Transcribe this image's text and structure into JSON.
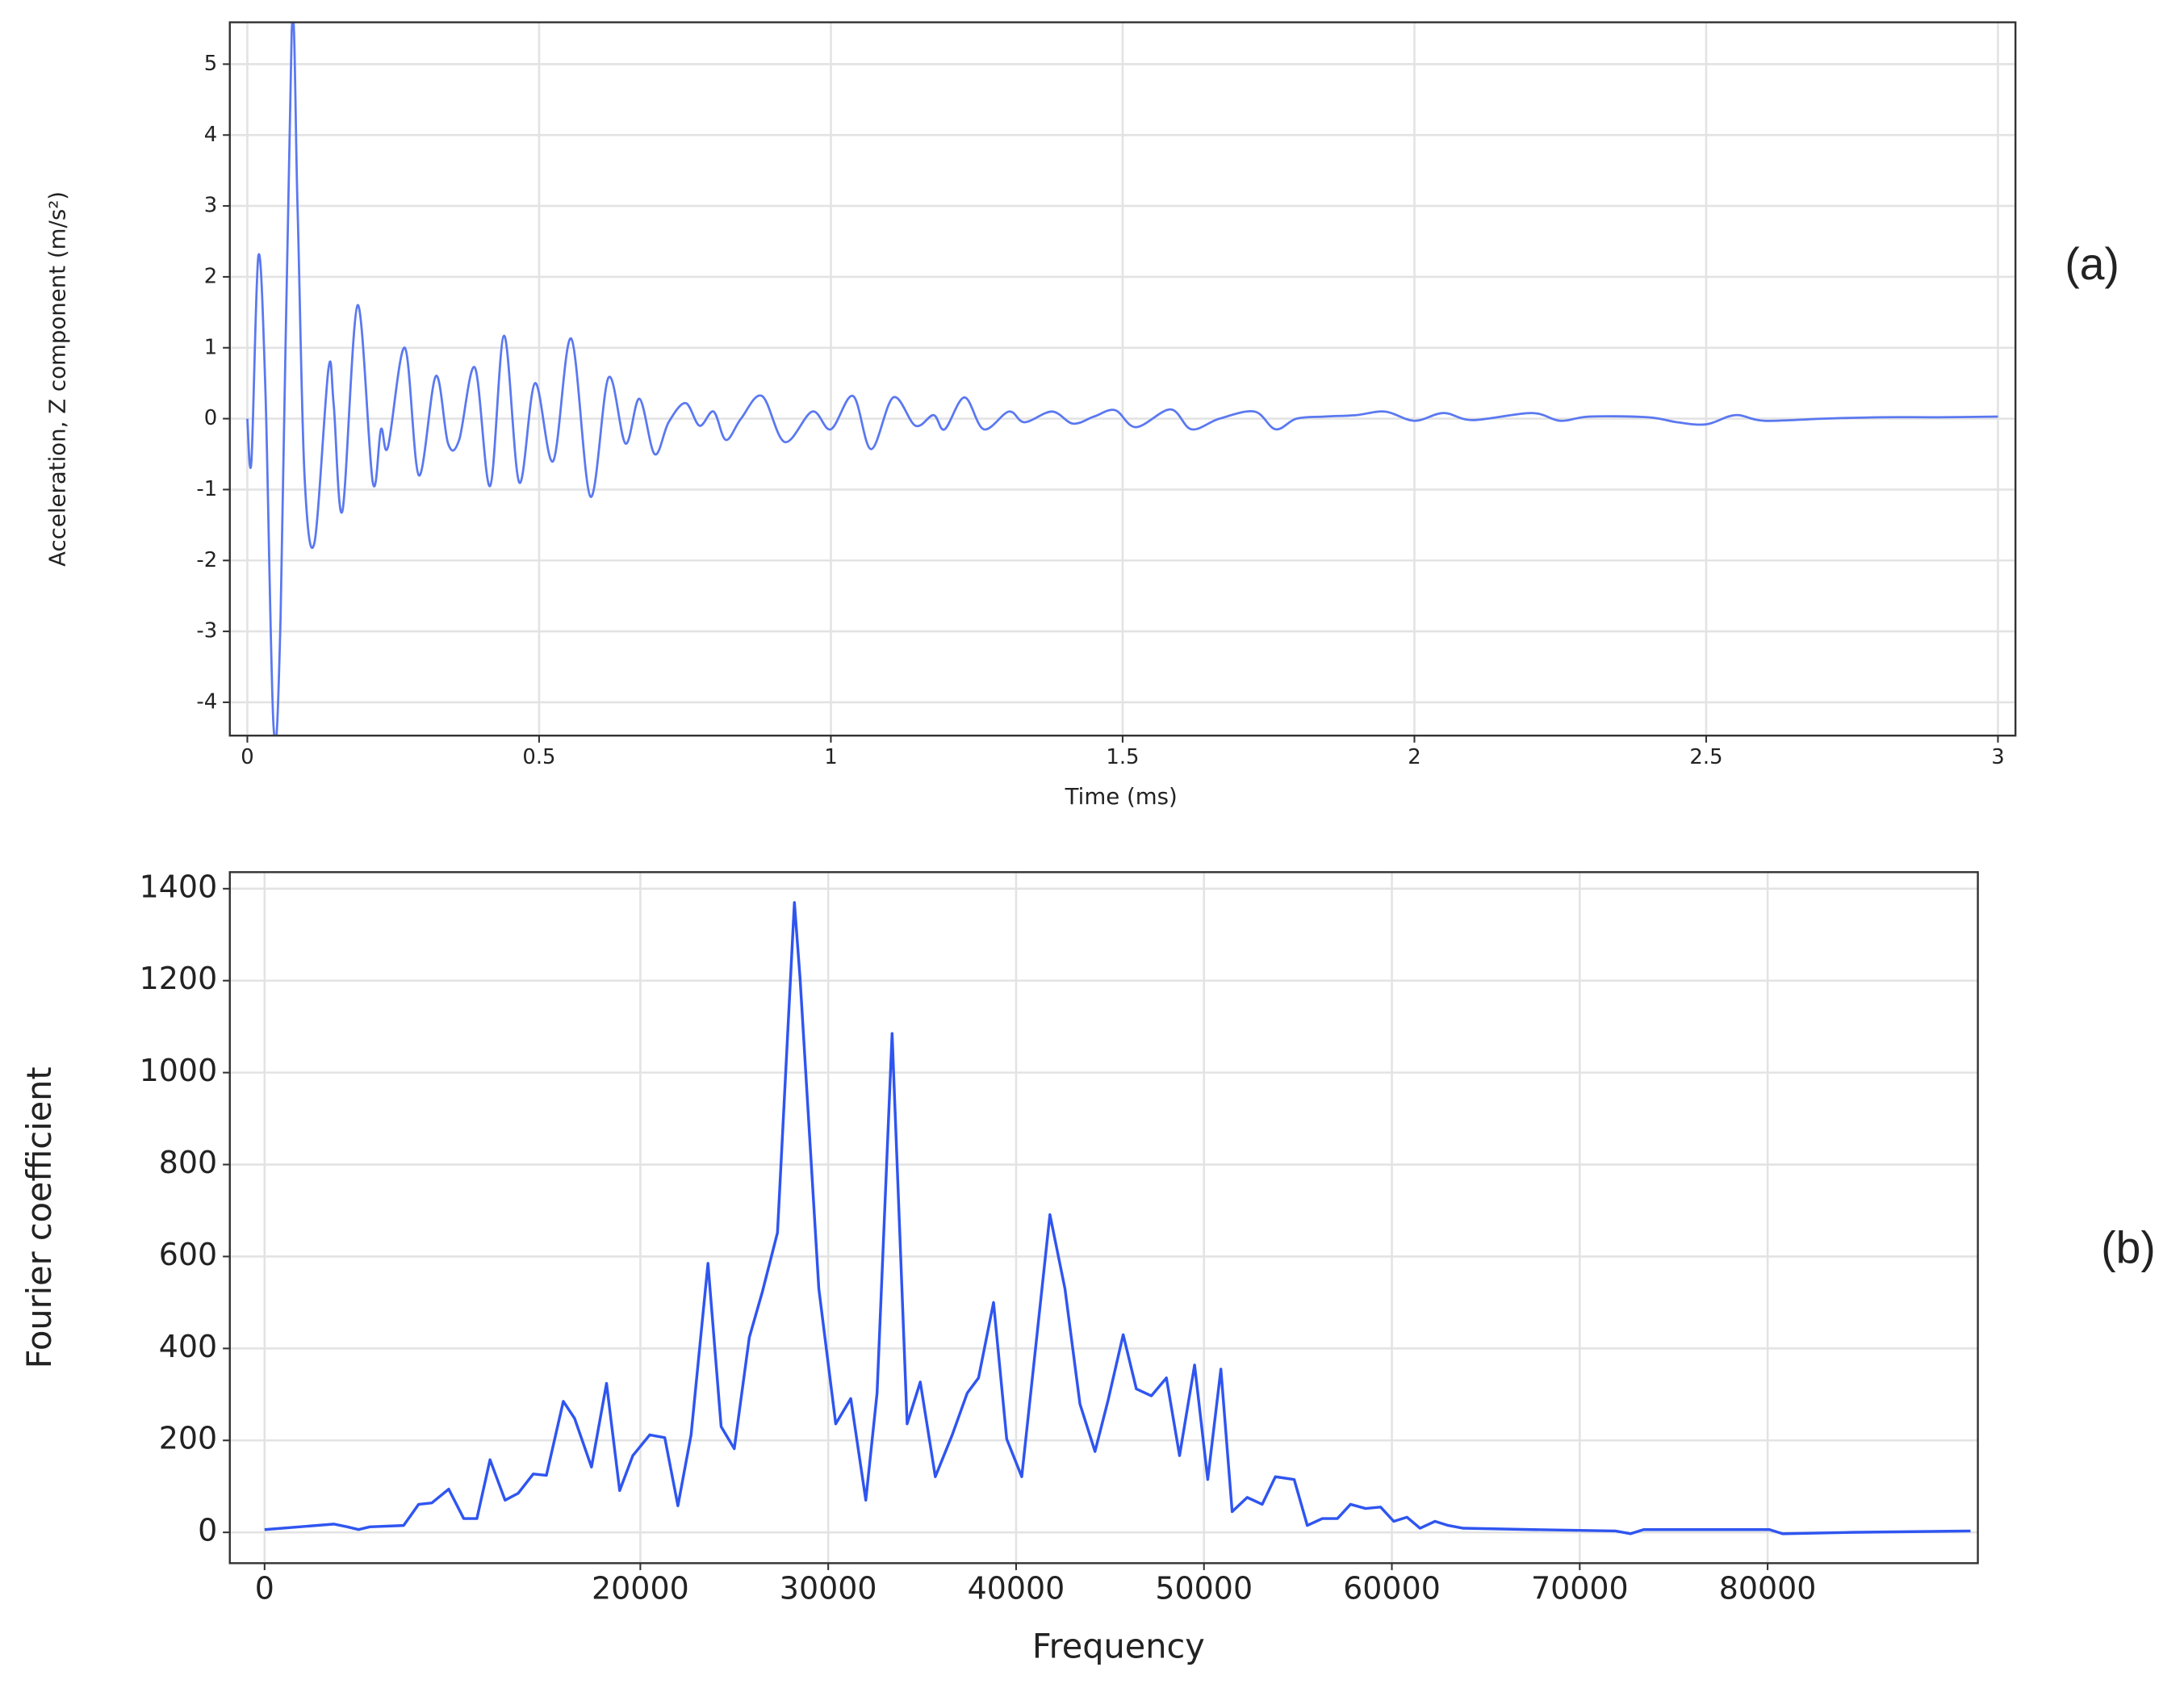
{
  "chart_data": [
    {
      "type": "line",
      "label": "(a)",
      "xlabel": "Time (ms)",
      "ylabel": "Acceleration, Z component (m/s²)",
      "color": "#5a78f0",
      "grid": true,
      "xlim": [
        -0.03,
        3.03
      ],
      "ylim": [
        -4.47,
        5.59
      ],
      "xticks": [
        0,
        0.5,
        1,
        1.5,
        2,
        2.5,
        3
      ],
      "yticks": [
        -4,
        -3,
        -2,
        -1,
        0,
        1,
        2,
        3,
        4,
        5
      ],
      "x": [
        0,
        0.007,
        0.019,
        0.031,
        0.045,
        0.057,
        0.076,
        0.086,
        0.098,
        0.115,
        0.139,
        0.148,
        0.163,
        0.189,
        0.215,
        0.229,
        0.241,
        0.27,
        0.294,
        0.323,
        0.344,
        0.363,
        0.39,
        0.416,
        0.44,
        0.466,
        0.493,
        0.524,
        0.555,
        0.588,
        0.619,
        0.648,
        0.672,
        0.698,
        0.722,
        0.751,
        0.775,
        0.799,
        0.82,
        0.846,
        0.882,
        0.921,
        0.968,
        1.0,
        1.038,
        1.069,
        1.107,
        1.145,
        1.176,
        1.195,
        1.229,
        1.262,
        1.305,
        1.332,
        1.379,
        1.415,
        1.451,
        1.487,
        1.523,
        1.582,
        1.618,
        1.666,
        1.726,
        1.762,
        1.798,
        1.846,
        1.9,
        1.95,
        2.0,
        2.05,
        2.1,
        2.2,
        2.25,
        2.3,
        2.4,
        2.45,
        2.5,
        2.55,
        2.6,
        2.7,
        2.8,
        2.9,
        3.0
      ],
      "values": [
        0,
        -0.6,
        2.3,
        0.4,
        -4.35,
        -2.8,
        5.45,
        3,
        -0.8,
        -1.75,
        0.7,
        0.2,
        -1.3,
        1.6,
        -0.9,
        -0.15,
        -0.4,
        1.0,
        -0.8,
        0.6,
        -0.35,
        -0.3,
        0.72,
        -0.95,
        1.17,
        -0.9,
        0.5,
        -0.6,
        1.13,
        -1.1,
        0.58,
        -0.35,
        0.28,
        -0.5,
        -0.05,
        0.22,
        -0.1,
        0.1,
        -0.3,
        0,
        0.32,
        -0.33,
        0.1,
        -0.15,
        0.32,
        -0.43,
        0.3,
        -0.1,
        0.05,
        -0.15,
        0.3,
        -0.15,
        0.1,
        -0.05,
        0.1,
        -0.07,
        0.03,
        0.12,
        -0.12,
        0.13,
        -0.15,
        0,
        0.1,
        -0.15,
        0,
        0.03,
        0.05,
        0.1,
        -0.03,
        0.08,
        -0.02,
        0.08,
        -0.03,
        0.03,
        0.02,
        -0.05,
        -0.08,
        0.05,
        -0.03,
        0,
        0.02,
        0.02,
        0.03
      ]
    },
    {
      "type": "line",
      "label": "(b)",
      "xlabel": "Frequency",
      "ylabel": "Fourier coefficient",
      "color": "#2f55f0",
      "grid": true,
      "xlim": [
        -1850,
        91190
      ],
      "ylim": [
        -67,
        1436
      ],
      "xticks": [
        0,
        20000,
        30000,
        40000,
        50000,
        60000,
        70000,
        80000
      ],
      "yticks": [
        0,
        200,
        400,
        600,
        800,
        1000,
        1200,
        1400
      ],
      "x": [
        0,
        3700,
        4400,
        5000,
        5600,
        7400,
        8200,
        8900,
        9800,
        10600,
        11300,
        12000,
        12800,
        13500,
        14300,
        15000,
        15900,
        16500,
        17400,
        18200,
        18900,
        19600,
        20500,
        21300,
        22000,
        22700,
        23600,
        24300,
        25000,
        25800,
        26500,
        27300,
        28200,
        28500,
        29500,
        30400,
        31200,
        32000,
        32600,
        33400,
        34200,
        34900,
        35700,
        36600,
        37400,
        38000,
        38800,
        39500,
        40300,
        41800,
        42600,
        43400,
        44200,
        44900,
        45700,
        46400,
        47200,
        48000,
        48700,
        49500,
        50200,
        50900,
        51500,
        52300,
        53100,
        53800,
        54800,
        55500,
        56300,
        57100,
        57800,
        58600,
        59400,
        60100,
        60800,
        61500,
        62300,
        63000,
        63800,
        67500,
        71900,
        72700,
        73400,
        80100,
        80800,
        84500,
        90800
      ],
      "values": [
        6,
        18,
        12,
        6,
        12,
        15,
        61,
        64,
        94,
        30,
        30,
        158,
        70,
        85,
        127,
        124,
        285,
        248,
        142,
        324,
        91,
        167,
        212,
        206,
        58,
        212,
        585,
        230,
        182,
        424,
        524,
        652,
        1370,
        1206,
        530,
        236,
        291,
        70,
        303,
        1085,
        236,
        327,
        121,
        212,
        303,
        336,
        500,
        203,
        121,
        691,
        530,
        279,
        176,
        288,
        430,
        312,
        297,
        336,
        167,
        364,
        115,
        355,
        45,
        76,
        61,
        121,
        115,
        15,
        30,
        30,
        61,
        52,
        55,
        24,
        33,
        9,
        24,
        15,
        9,
        6,
        3,
        -3,
        6,
        6,
        -3,
        0,
        3
      ]
    }
  ]
}
